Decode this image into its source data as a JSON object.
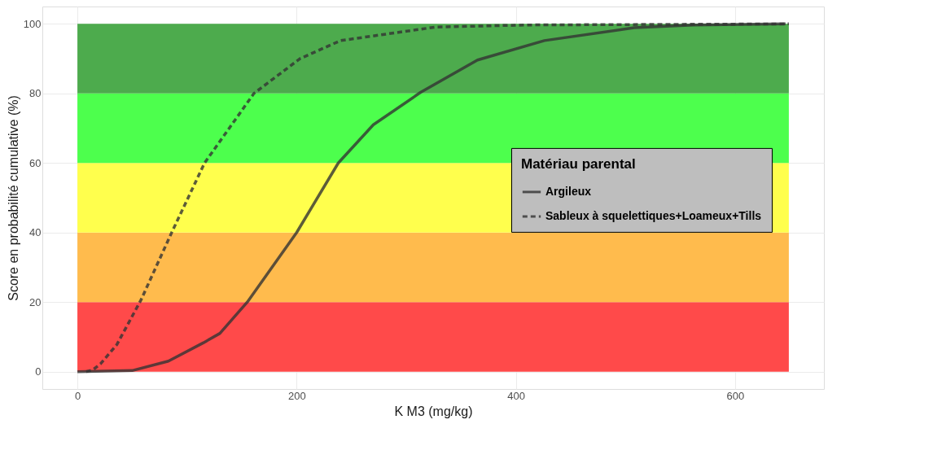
{
  "chart_data": {
    "type": "line",
    "xlabel": "K M3 (mg/kg)",
    "ylabel": "Score en probabilité cumulative (%)",
    "legend_title": "Matériau parental",
    "xlim": [
      -32,
      681
    ],
    "ylim": [
      -5,
      105
    ],
    "xticks": [
      0,
      200,
      400,
      600
    ],
    "yticks": [
      0,
      20,
      40,
      60,
      80,
      100
    ],
    "grid": true,
    "legend": "right",
    "bands": [
      {
        "axis": "y",
        "from": 0,
        "to": 20,
        "color": "#ff4a4a"
      },
      {
        "axis": "y",
        "from": 20,
        "to": 40,
        "color": "#ffbb4d"
      },
      {
        "axis": "y",
        "from": 40,
        "to": 60,
        "color": "#ffff4d"
      },
      {
        "axis": "y",
        "from": 60,
        "to": 80,
        "color": "#4dff4d"
      },
      {
        "axis": "y",
        "from": 80,
        "to": 100,
        "color": "#4dab4d"
      }
    ],
    "series": [
      {
        "name": "Argileux",
        "color": "#333333",
        "line_style": "solid",
        "x": [
          0,
          50,
          83,
          115,
          130,
          155,
          200,
          238,
          270,
          313,
          365,
          426,
          508,
          562,
          646
        ],
        "values": [
          0,
          0.3,
          3,
          8.3,
          11,
          20,
          40,
          60,
          71,
          80.3,
          89.6,
          95.2,
          98.9,
          99.7,
          100
        ]
      },
      {
        "name": "Sableux à squelettiques+Loameux+Tills",
        "color": "#333333",
        "line_style": "dashed",
        "x": [
          8,
          14,
          21,
          36,
          58,
          86,
          116,
          161,
          203,
          240,
          327,
          412,
          649
        ],
        "values": [
          0,
          0.5,
          2.2,
          7.8,
          20.6,
          40,
          60,
          80,
          90,
          95.2,
          99.1,
          99.7,
          100
        ]
      }
    ]
  }
}
